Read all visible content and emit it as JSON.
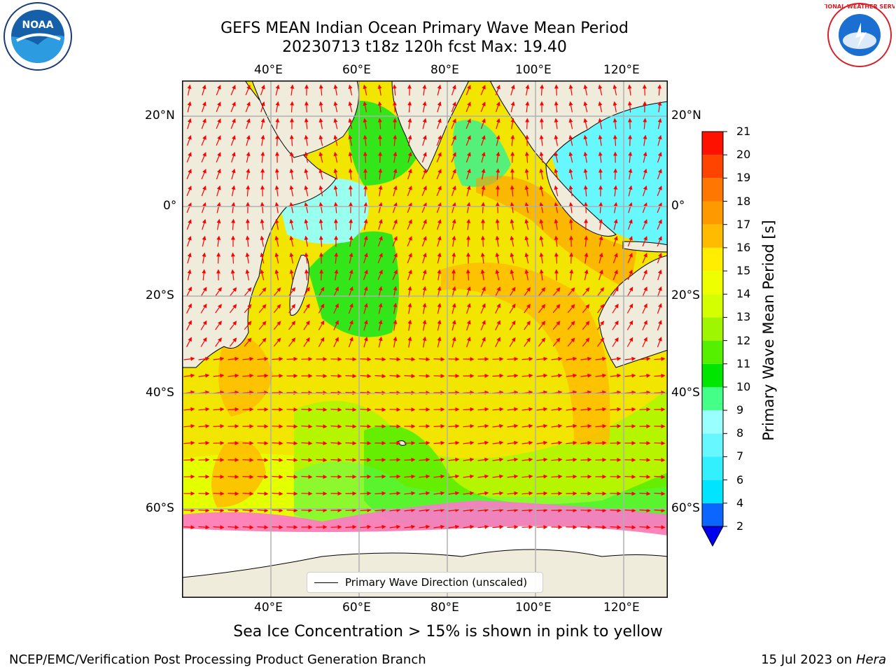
{
  "title": {
    "line1": "GEFS MEAN Indian Ocean Primary Wave Mean Period",
    "line2": "20230713 t18z 120h fcst   Max: 19.40"
  },
  "logos": {
    "left": "NOAA",
    "right": "NATIONAL WEATHER SERVICE"
  },
  "map": {
    "lon_ticks": [
      "40°E",
      "60°E",
      "80°E",
      "100°E",
      "120°E"
    ],
    "lat_ticks_left": [
      "20°N",
      "0°",
      "20°S",
      "40°S",
      "60°S"
    ],
    "lat_ticks_right": [
      "20°N",
      "0°",
      "20°S",
      "40°S",
      "60°S"
    ],
    "ocean_color": "#f2e600",
    "land_color": "#efecdc",
    "ice_color": "#ffffff",
    "arrow_color": "#ff0000"
  },
  "legend": {
    "label": "Primary Wave Direction (unscaled)"
  },
  "colorbar": {
    "label": "Primary Wave Mean Period [s]",
    "ticks": [
      "2",
      "4",
      "6",
      "7",
      "8",
      "9",
      "10",
      "11",
      "12",
      "13",
      "14",
      "15",
      "16",
      "17",
      "18",
      "19",
      "20",
      "21"
    ],
    "colors": [
      "#0b66ff",
      "#00e5ff",
      "#33f0ff",
      "#66f7ff",
      "#99ffff",
      "#44ff88",
      "#00e600",
      "#55f000",
      "#a0f500",
      "#d4ff00",
      "#eeff00",
      "#ffee00",
      "#ffbb00",
      "#ff9900",
      "#ff7700",
      "#ff4400",
      "#ff1100"
    ],
    "extend_color": "#0000ee"
  },
  "caption": "Sea Ice Concentration > 15% is shown in pink to yellow",
  "footer": {
    "left": "NCEP/EMC/Verification Post Processing Product Generation Branch",
    "date": "15 Jul 2023 on ",
    "machine": "Hera"
  }
}
